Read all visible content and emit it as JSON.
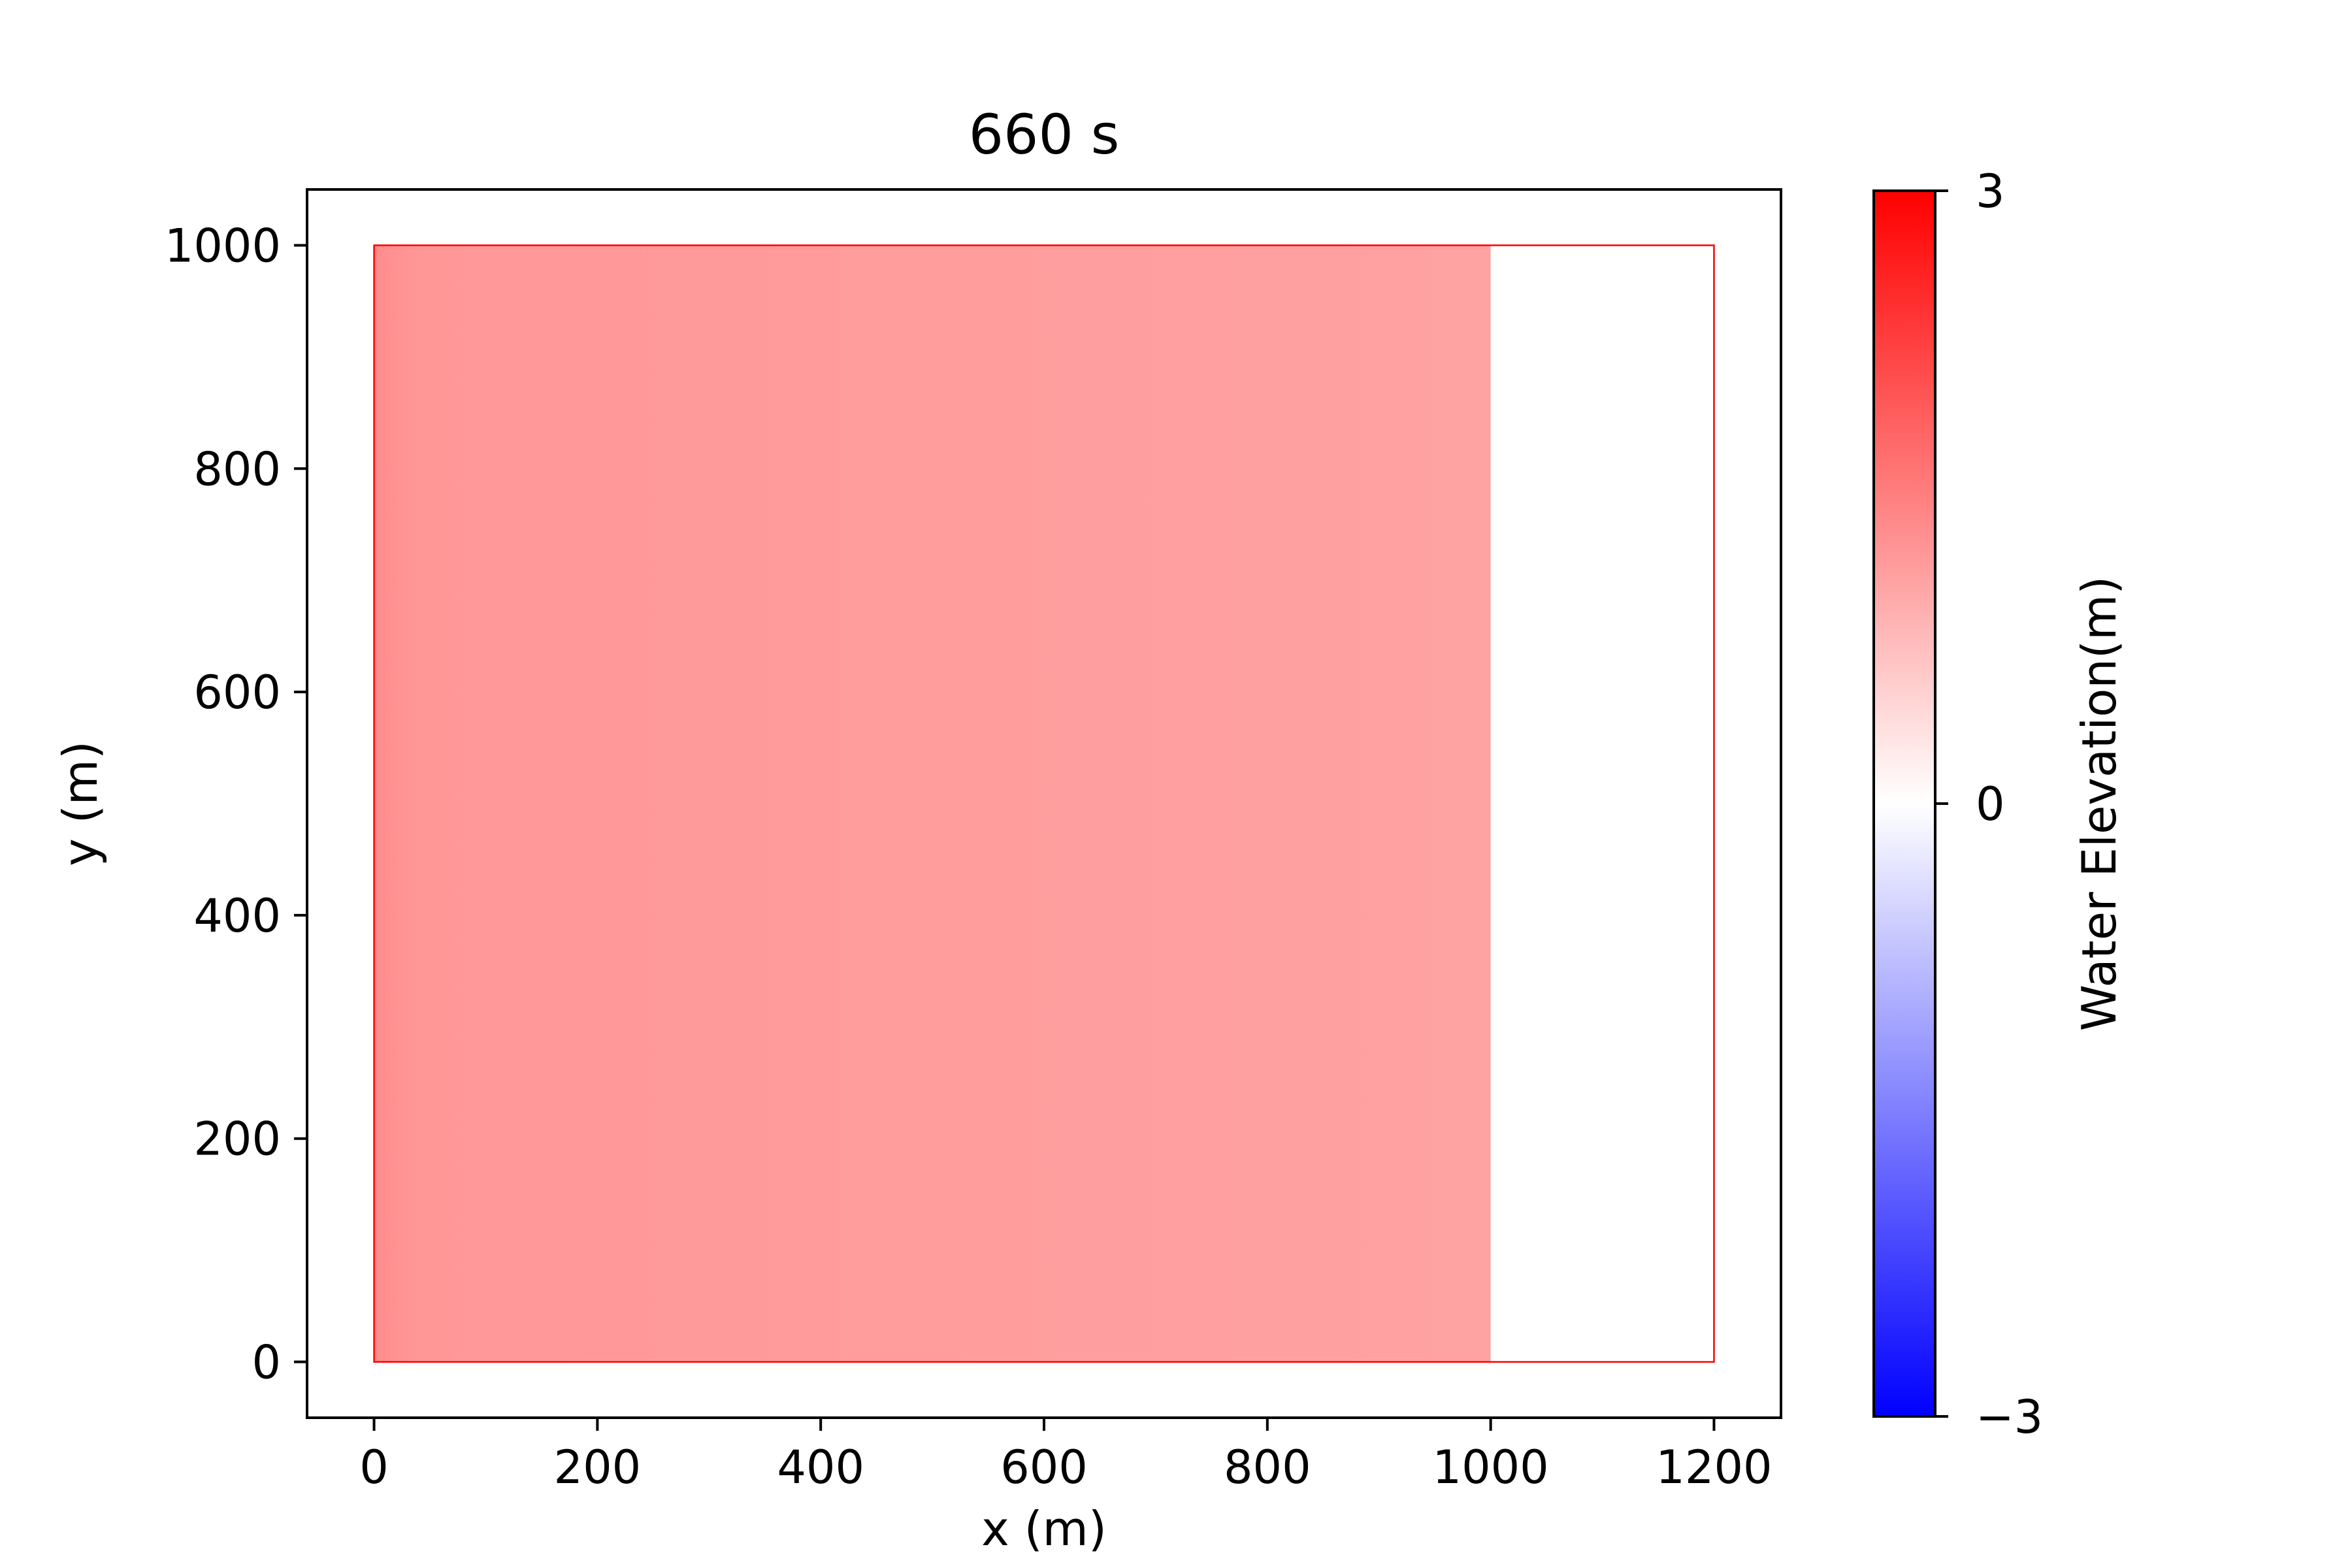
{
  "chart_data": {
    "type": "heatmap",
    "title": "660 s",
    "xlabel": "x (m)",
    "ylabel": "y (m)",
    "xlim": [
      -60,
      1260
    ],
    "ylim": [
      -50,
      1050
    ],
    "xticks": [
      0,
      200,
      400,
      600,
      800,
      1000,
      1200
    ],
    "yticks": [
      0,
      200,
      400,
      600,
      800,
      1000
    ],
    "grid": false,
    "domain_boundary": {
      "x": [
        0,
        1200
      ],
      "y": [
        0,
        1000
      ],
      "color": "#ff0000"
    },
    "field": {
      "variable": "water elevation",
      "inundated_x_range": [
        0,
        1000
      ],
      "dry_x_range": [
        1000,
        1200
      ],
      "elevation_left_edge_m": 1.35,
      "elevation_main_m": 1.1,
      "elevation_dry_m": 0
    },
    "colorbar": {
      "label": "Water Elevation(m)",
      "colormap": "bwr",
      "min": -3,
      "max": 3,
      "ticks": [
        3,
        0,
        -3
      ],
      "tick_labels": [
        "3",
        "0",
        "−3"
      ],
      "colors": {
        "low": "#0000ff",
        "mid": "#ffffff",
        "high": "#ff0000"
      }
    }
  }
}
